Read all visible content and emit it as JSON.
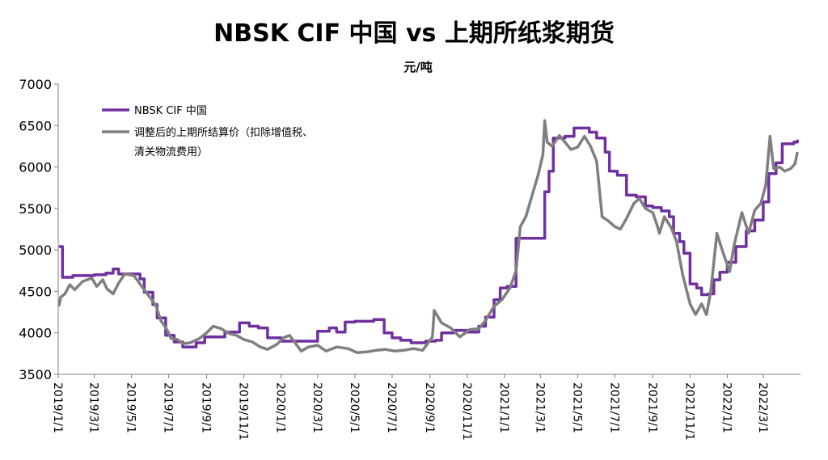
{
  "chart_data": {
    "type": "line",
    "title": "NBSK CIF 中国 vs 上期所纸浆期货",
    "unit": "元/吨",
    "ylim": [
      3500,
      7000
    ],
    "yticks": [
      3500,
      4000,
      4500,
      5000,
      5500,
      6000,
      6500,
      7000
    ],
    "xlim": [
      "2019-01-01",
      "2022-05-01"
    ],
    "xticks": [
      {
        "date": "2019-01-01",
        "label": "2019/1/1"
      },
      {
        "date": "2019-03-01",
        "label": "2019/3/1"
      },
      {
        "date": "2019-05-01",
        "label": "2019/5/1"
      },
      {
        "date": "2019-07-01",
        "label": "2019/7/1"
      },
      {
        "date": "2019-09-01",
        "label": "2019/9/1"
      },
      {
        "date": "2019-11-01",
        "label": "2019/11/1"
      },
      {
        "date": "2020-01-01",
        "label": "2020/1/1"
      },
      {
        "date": "2020-03-01",
        "label": "2020/3/1"
      },
      {
        "date": "2020-05-01",
        "label": "2020/5/1"
      },
      {
        "date": "2020-07-01",
        "label": "2020/7/1"
      },
      {
        "date": "2020-09-01",
        "label": "2020/9/1"
      },
      {
        "date": "2020-11-01",
        "label": "2020/11/1"
      },
      {
        "date": "2021-01-01",
        "label": "2021/1/1"
      },
      {
        "date": "2021-03-01",
        "label": "2021/3/1"
      },
      {
        "date": "2021-05-01",
        "label": "2021/5/1"
      },
      {
        "date": "2021-07-01",
        "label": "2021/7/1"
      },
      {
        "date": "2021-09-01",
        "label": "2021/9/1"
      },
      {
        "date": "2021-11-01",
        "label": "2021/11/1"
      },
      {
        "date": "2022-01-01",
        "label": "2022/1/1"
      },
      {
        "date": "2022-03-01",
        "label": "2022/3/1"
      }
    ],
    "grid": false,
    "legend_position": "top-left",
    "series": [
      {
        "name": "NBSK CIF 中国",
        "color": "#7030A0",
        "step": true,
        "points": [
          [
            "2019-01-02",
            5040
          ],
          [
            "2019-01-07",
            5040
          ],
          [
            "2019-01-08",
            4670
          ],
          [
            "2019-01-25",
            4690
          ],
          [
            "2019-03-01",
            4700
          ],
          [
            "2019-03-20",
            4720
          ],
          [
            "2019-04-01",
            4770
          ],
          [
            "2019-04-10",
            4710
          ],
          [
            "2019-05-15",
            4650
          ],
          [
            "2019-05-22",
            4490
          ],
          [
            "2019-06-05",
            4340
          ],
          [
            "2019-06-12",
            4180
          ],
          [
            "2019-06-26",
            3970
          ],
          [
            "2019-07-10",
            3890
          ],
          [
            "2019-07-24",
            3830
          ],
          [
            "2019-08-01",
            3830
          ],
          [
            "2019-08-15",
            3880
          ],
          [
            "2019-08-29",
            3950
          ],
          [
            "2019-09-12",
            3950
          ],
          [
            "2019-10-01",
            4010
          ],
          [
            "2019-10-25",
            4120
          ],
          [
            "2019-11-10",
            4080
          ],
          [
            "2019-11-25",
            4060
          ],
          [
            "2019-12-10",
            3940
          ],
          [
            "2020-01-01",
            3900
          ],
          [
            "2020-02-01",
            3900
          ],
          [
            "2020-03-01",
            4020
          ],
          [
            "2020-03-20",
            4060
          ],
          [
            "2020-04-01",
            4010
          ],
          [
            "2020-04-15",
            4130
          ],
          [
            "2020-05-01",
            4140
          ],
          [
            "2020-06-01",
            4160
          ],
          [
            "2020-06-18",
            4000
          ],
          [
            "2020-07-01",
            3940
          ],
          [
            "2020-07-15",
            3910
          ],
          [
            "2020-08-01",
            3880
          ],
          [
            "2020-08-25",
            3900
          ],
          [
            "2020-09-10",
            3910
          ],
          [
            "2020-09-20",
            4000
          ],
          [
            "2020-10-10",
            4030
          ],
          [
            "2020-11-01",
            4010
          ],
          [
            "2020-11-20",
            4080
          ],
          [
            "2020-12-01",
            4190
          ],
          [
            "2020-12-15",
            4400
          ],
          [
            "2020-12-25",
            4540
          ],
          [
            "2021-01-05",
            4560
          ],
          [
            "2021-01-20",
            5140
          ],
          [
            "2021-02-25",
            5140
          ],
          [
            "2021-03-08",
            5700
          ],
          [
            "2021-03-15",
            5950
          ],
          [
            "2021-03-22",
            6350
          ],
          [
            "2021-04-10",
            6370
          ],
          [
            "2021-04-25",
            6470
          ],
          [
            "2021-05-20",
            6420
          ],
          [
            "2021-06-01",
            6350
          ],
          [
            "2021-06-15",
            6180
          ],
          [
            "2021-06-22",
            5950
          ],
          [
            "2021-07-05",
            5900
          ],
          [
            "2021-07-20",
            5660
          ],
          [
            "2021-08-05",
            5640
          ],
          [
            "2021-08-20",
            5530
          ],
          [
            "2021-09-01",
            5510
          ],
          [
            "2021-09-15",
            5470
          ],
          [
            "2021-09-28",
            5400
          ],
          [
            "2021-10-05",
            5200
          ],
          [
            "2021-10-15",
            5100
          ],
          [
            "2021-10-22",
            4960
          ],
          [
            "2021-11-01",
            4590
          ],
          [
            "2021-11-12",
            4540
          ],
          [
            "2021-11-20",
            4460
          ],
          [
            "2021-12-01",
            4470
          ],
          [
            "2021-12-10",
            4640
          ],
          [
            "2021-12-20",
            4730
          ],
          [
            "2022-01-01",
            4850
          ],
          [
            "2022-01-15",
            5040
          ],
          [
            "2022-02-01",
            5230
          ],
          [
            "2022-02-15",
            5360
          ],
          [
            "2022-03-01",
            5580
          ],
          [
            "2022-03-10",
            5920
          ],
          [
            "2022-03-22",
            6050
          ],
          [
            "2022-04-01",
            6280
          ],
          [
            "2022-04-20",
            6300
          ],
          [
            "2022-04-26",
            6330
          ]
        ]
      },
      {
        "name": "调整后的上期所结算价（扣除增值税、清关物流费用）",
        "color": "#7F7F7F",
        "step": false,
        "points": [
          [
            "2019-01-02",
            4320
          ],
          [
            "2019-01-05",
            4430
          ],
          [
            "2019-01-12",
            4470
          ],
          [
            "2019-01-20",
            4580
          ],
          [
            "2019-01-28",
            4520
          ],
          [
            "2019-02-10",
            4620
          ],
          [
            "2019-02-25",
            4660
          ],
          [
            "2019-03-05",
            4560
          ],
          [
            "2019-03-15",
            4640
          ],
          [
            "2019-03-22",
            4530
          ],
          [
            "2019-04-01",
            4470
          ],
          [
            "2019-04-10",
            4600
          ],
          [
            "2019-04-20",
            4710
          ],
          [
            "2019-05-05",
            4690
          ],
          [
            "2019-05-18",
            4560
          ],
          [
            "2019-06-01",
            4420
          ],
          [
            "2019-06-10",
            4330
          ],
          [
            "2019-06-18",
            4150
          ],
          [
            "2019-06-28",
            4040
          ],
          [
            "2019-07-05",
            3930
          ],
          [
            "2019-07-15",
            3920
          ],
          [
            "2019-07-25",
            3870
          ],
          [
            "2019-08-05",
            3880
          ],
          [
            "2019-08-20",
            3930
          ],
          [
            "2019-09-01",
            4000
          ],
          [
            "2019-09-12",
            4080
          ],
          [
            "2019-09-25",
            4050
          ],
          [
            "2019-10-08",
            3990
          ],
          [
            "2019-10-20",
            3970
          ],
          [
            "2019-11-01",
            3920
          ],
          [
            "2019-11-15",
            3890
          ],
          [
            "2019-11-28",
            3830
          ],
          [
            "2019-12-10",
            3800
          ],
          [
            "2019-12-25",
            3860
          ],
          [
            "2020-01-05",
            3940
          ],
          [
            "2020-01-15",
            3970
          ],
          [
            "2020-02-03",
            3780
          ],
          [
            "2020-02-15",
            3830
          ],
          [
            "2020-03-01",
            3850
          ],
          [
            "2020-03-15",
            3780
          ],
          [
            "2020-04-01",
            3830
          ],
          [
            "2020-04-20",
            3810
          ],
          [
            "2020-05-05",
            3760
          ],
          [
            "2020-05-20",
            3770
          ],
          [
            "2020-06-05",
            3790
          ],
          [
            "2020-06-20",
            3800
          ],
          [
            "2020-07-05",
            3780
          ],
          [
            "2020-07-20",
            3790
          ],
          [
            "2020-08-05",
            3810
          ],
          [
            "2020-08-20",
            3790
          ],
          [
            "2020-09-05",
            3950
          ],
          [
            "2020-09-08",
            4270
          ],
          [
            "2020-09-20",
            4120
          ],
          [
            "2020-10-05",
            4060
          ],
          [
            "2020-10-20",
            3950
          ],
          [
            "2020-11-05",
            4040
          ],
          [
            "2020-11-20",
            4050
          ],
          [
            "2020-12-01",
            4150
          ],
          [
            "2020-12-15",
            4320
          ],
          [
            "2020-12-28",
            4400
          ],
          [
            "2021-01-10",
            4540
          ],
          [
            "2021-01-20",
            4750
          ],
          [
            "2021-01-27",
            5280
          ],
          [
            "2021-02-05",
            5400
          ],
          [
            "2021-02-15",
            5650
          ],
          [
            "2021-02-25",
            5900
          ],
          [
            "2021-03-05",
            6150
          ],
          [
            "2021-03-08",
            6560
          ],
          [
            "2021-03-12",
            6300
          ],
          [
            "2021-03-20",
            6250
          ],
          [
            "2021-04-01",
            6380
          ],
          [
            "2021-04-10",
            6300
          ],
          [
            "2021-04-20",
            6210
          ],
          [
            "2021-05-01",
            6240
          ],
          [
            "2021-05-12",
            6370
          ],
          [
            "2021-05-22",
            6250
          ],
          [
            "2021-06-01",
            6070
          ],
          [
            "2021-06-10",
            5400
          ],
          [
            "2021-06-20",
            5350
          ],
          [
            "2021-07-01",
            5280
          ],
          [
            "2021-07-10",
            5250
          ],
          [
            "2021-07-20",
            5380
          ],
          [
            "2021-08-01",
            5560
          ],
          [
            "2021-08-10",
            5620
          ],
          [
            "2021-08-20",
            5500
          ],
          [
            "2021-09-01",
            5450
          ],
          [
            "2021-09-08",
            5300
          ],
          [
            "2021-09-12",
            5200
          ],
          [
            "2021-09-20",
            5400
          ],
          [
            "2021-10-01",
            5270
          ],
          [
            "2021-10-10",
            5100
          ],
          [
            "2021-10-20",
            4700
          ],
          [
            "2021-11-01",
            4350
          ],
          [
            "2021-11-10",
            4220
          ],
          [
            "2021-11-20",
            4350
          ],
          [
            "2021-11-28",
            4220
          ],
          [
            "2021-12-05",
            4500
          ],
          [
            "2021-12-15",
            5200
          ],
          [
            "2021-12-25",
            4970
          ],
          [
            "2022-01-05",
            4740
          ],
          [
            "2022-01-12",
            5050
          ],
          [
            "2022-01-25",
            5450
          ],
          [
            "2022-02-05",
            5200
          ],
          [
            "2022-02-15",
            5480
          ],
          [
            "2022-02-25",
            5560
          ],
          [
            "2022-03-05",
            5780
          ],
          [
            "2022-03-12",
            6370
          ],
          [
            "2022-03-18",
            5980
          ],
          [
            "2022-03-28",
            6000
          ],
          [
            "2022-04-05",
            5950
          ],
          [
            "2022-04-15",
            5980
          ],
          [
            "2022-04-22",
            6040
          ],
          [
            "2022-04-26",
            6180
          ]
        ]
      }
    ]
  }
}
